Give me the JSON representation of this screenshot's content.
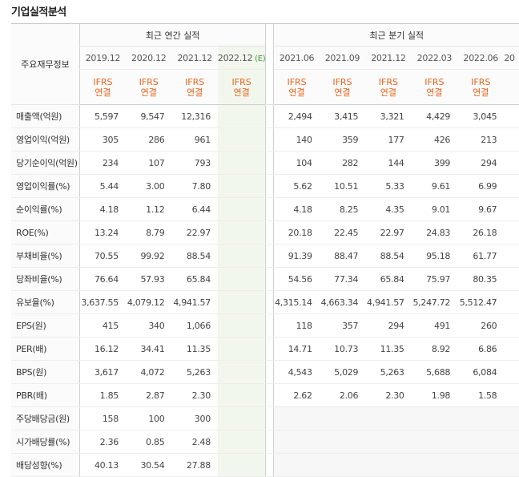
{
  "page_title": "기업실적분석",
  "header": {
    "row_label": "주요재무정보",
    "annual_group": "최근 연간 실적",
    "quarter_group": "최근 분기 실적",
    "annual_periods": [
      "2019.12",
      "2020.12",
      "2021.12",
      "2022.12"
    ],
    "estimate_marker": "(E)",
    "quarter_periods": [
      "2021.06",
      "2021.09",
      "2021.12",
      "2022.03",
      "2022.06",
      "20"
    ],
    "accounting_line1": "IFRS",
    "accounting_line2": "연결"
  },
  "rows": [
    {
      "label": "매출액(억원)",
      "annual": [
        "5,597",
        "9,547",
        "12,316",
        ""
      ],
      "quarter": [
        "2,494",
        "3,415",
        "3,321",
        "4,429",
        "3,045",
        ""
      ]
    },
    {
      "label": "영업이익(억원)",
      "annual": [
        "305",
        "286",
        "961",
        ""
      ],
      "quarter": [
        "140",
        "359",
        "177",
        "426",
        "213",
        ""
      ]
    },
    {
      "label": "당기순이익(억원)",
      "annual": [
        "234",
        "107",
        "793",
        ""
      ],
      "quarter": [
        "104",
        "282",
        "144",
        "399",
        "294",
        ""
      ]
    },
    {
      "label": "영업이익률(%)",
      "annual": [
        "5.44",
        "3.00",
        "7.80",
        ""
      ],
      "quarter": [
        "5.62",
        "10.51",
        "5.33",
        "9.61",
        "6.99",
        ""
      ]
    },
    {
      "label": "순이익률(%)",
      "annual": [
        "4.18",
        "1.12",
        "6.44",
        ""
      ],
      "quarter": [
        "4.18",
        "8.25",
        "4.35",
        "9.01",
        "9.67",
        ""
      ]
    },
    {
      "label": "ROE(%)",
      "annual": [
        "13.24",
        "8.79",
        "22.97",
        ""
      ],
      "quarter": [
        "20.18",
        "22.45",
        "22.97",
        "24.83",
        "26.18",
        ""
      ]
    },
    {
      "label": "부채비율(%)",
      "annual": [
        "70.55",
        "99.92",
        "88.54",
        ""
      ],
      "quarter": [
        "91.39",
        "88.47",
        "88.54",
        "95.18",
        "61.77",
        ""
      ]
    },
    {
      "label": "당좌비율(%)",
      "annual": [
        "76.64",
        "57.93",
        "65.84",
        ""
      ],
      "quarter": [
        "54.56",
        "77.34",
        "65.84",
        "75.97",
        "80.35",
        ""
      ]
    },
    {
      "label": "유보율(%)",
      "annual": [
        "3,637.55",
        "4,079.12",
        "4,941.57",
        ""
      ],
      "quarter": [
        "4,315.14",
        "4,663.34",
        "4,941.57",
        "5,247.72",
        "5,512.47",
        ""
      ]
    },
    {
      "label": "EPS(원)",
      "annual": [
        "415",
        "340",
        "1,066",
        ""
      ],
      "quarter": [
        "118",
        "357",
        "294",
        "491",
        "260",
        ""
      ]
    },
    {
      "label": "PER(배)",
      "annual": [
        "16.12",
        "34.41",
        "11.35",
        ""
      ],
      "quarter": [
        "14.71",
        "10.73",
        "11.35",
        "8.92",
        "6.86",
        ""
      ]
    },
    {
      "label": "BPS(원)",
      "annual": [
        "3,617",
        "4,072",
        "5,263",
        ""
      ],
      "quarter": [
        "4,543",
        "5,029",
        "5,263",
        "5,688",
        "6,084",
        ""
      ]
    },
    {
      "label": "PBR(배)",
      "annual": [
        "1.85",
        "2.87",
        "2.30",
        ""
      ],
      "quarter": [
        "2.62",
        "2.06",
        "2.30",
        "1.98",
        "1.58",
        ""
      ]
    },
    {
      "label": "주당배당금(원)",
      "annual": [
        "158",
        "100",
        "300",
        ""
      ],
      "quarter": [
        "",
        "",
        "",
        "",
        "",
        ""
      ]
    },
    {
      "label": "시가배당률(%)",
      "annual": [
        "2.36",
        "0.85",
        "2.48",
        ""
      ],
      "quarter": [
        "",
        "",
        "",
        "",
        "",
        ""
      ]
    },
    {
      "label": "배당성향(%)",
      "annual": [
        "40.13",
        "30.54",
        "27.88",
        ""
      ],
      "quarter": [
        "",
        "",
        "",
        "",
        "",
        ""
      ]
    }
  ],
  "colors": {
    "accounting": "#e8641c",
    "estimate_bg": "#f2f7ee",
    "estimate_marker": "#4a9a3a"
  }
}
